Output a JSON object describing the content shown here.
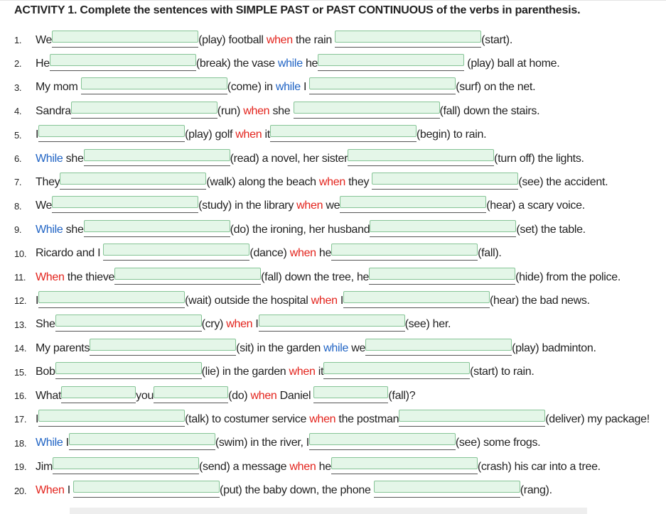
{
  "title": "ACTIVITY 1. Complete the sentences with SIMPLE PAST or PAST CONTINUOUS of the verbs in parenthesis.",
  "blank_style": {
    "fill": "#e4f6e8",
    "border": "#86c496",
    "underline": "#555555"
  },
  "items": [
    {
      "number": "1.",
      "parts": [
        "We",
        {
          "blank": true
        },
        "(play) football ",
        {
          "text": "when",
          "color": "#e3231c"
        },
        " the rain ",
        {
          "blank": true
        },
        "(start)."
      ]
    },
    {
      "number": "2.",
      "parts": [
        "He",
        {
          "blank": true
        },
        "(break) the vase ",
        {
          "text": "while",
          "color": "#1f63c4"
        },
        " he",
        {
          "blank": true
        },
        " (play) ball at home."
      ]
    },
    {
      "number": "3.",
      "parts": [
        "My mom ",
        {
          "blank": true
        },
        "(come) in ",
        {
          "text": "while",
          "color": "#1f63c4"
        },
        " I ",
        {
          "blank": true
        },
        "(surf) on the net."
      ]
    },
    {
      "number": "4.",
      "parts": [
        "Sandra",
        {
          "blank": true
        },
        "(run) ",
        {
          "text": "when",
          "color": "#e3231c"
        },
        " she ",
        {
          "blank": true
        },
        "(fall) down the stairs."
      ]
    },
    {
      "number": "5.",
      "parts": [
        "I",
        {
          "blank": true
        },
        "(play) golf ",
        {
          "text": "when",
          "color": "#e3231c"
        },
        " it",
        {
          "blank": true
        },
        "(begin) to rain."
      ]
    },
    {
      "number": "6.",
      "parts": [
        {
          "text": "While",
          "color": "#1f63c4"
        },
        " she",
        {
          "blank": true
        },
        "(read) a novel, her sister",
        {
          "blank": true
        },
        "(turn off) the lights."
      ]
    },
    {
      "number": "7.",
      "parts": [
        "They",
        {
          "blank": true
        },
        "(walk) along the beach ",
        {
          "text": "when",
          "color": "#e3231c"
        },
        " they ",
        {
          "blank": true
        },
        "(see) the accident."
      ]
    },
    {
      "number": "8.",
      "parts": [
        "We",
        {
          "blank": true
        },
        "(study) in the library ",
        {
          "text": "when",
          "color": "#e3231c"
        },
        " we",
        {
          "blank": true
        },
        "(hear) a scary voice."
      ]
    },
    {
      "number": "9.",
      "parts": [
        {
          "text": "While",
          "color": "#1f63c4"
        },
        " she",
        {
          "blank": true
        },
        "(do) the ironing, her husband",
        {
          "blank": true
        },
        "(set) the table."
      ]
    },
    {
      "number": "10.",
      "parts": [
        "Ricardo and I ",
        {
          "blank": true
        },
        "(dance) ",
        {
          "text": "when",
          "color": "#e3231c"
        },
        " he",
        {
          "blank": true
        },
        "(fall)."
      ]
    },
    {
      "number": "11.",
      "parts": [
        {
          "text": "When",
          "color": "#e3231c"
        },
        " the thieve",
        {
          "blank": true
        },
        "(fall) down the tree, he",
        {
          "blank": true
        },
        "(hide) from the police."
      ]
    },
    {
      "number": "12.",
      "parts": [
        "I",
        {
          "blank": true
        },
        "(wait) outside the hospital ",
        {
          "text": "when",
          "color": "#e3231c"
        },
        " I",
        {
          "blank": true
        },
        "(hear) the bad news."
      ]
    },
    {
      "number": "13.",
      "parts": [
        "She",
        {
          "blank": true
        },
        "(cry) ",
        {
          "text": "when",
          "color": "#e3231c"
        },
        " I",
        {
          "blank": true
        },
        "(see) her."
      ]
    },
    {
      "number": "14.",
      "parts": [
        "My parents",
        {
          "blank": true
        },
        "(sit) in the garden ",
        {
          "text": "while",
          "color": "#1f63c4"
        },
        " we",
        {
          "blank": true
        },
        "(play) badminton."
      ]
    },
    {
      "number": "15.",
      "parts": [
        "Bob",
        {
          "blank": true
        },
        "(lie) in the garden ",
        {
          "text": "when",
          "color": "#e3231c"
        },
        " it",
        {
          "blank": true
        },
        "(start) to rain."
      ]
    },
    {
      "number": "16.",
      "parts": [
        "What",
        {
          "blank": true
        },
        "you",
        {
          "blank": true
        },
        "(do) ",
        {
          "text": "when",
          "color": "#e3231c"
        },
        " Daniel ",
        {
          "blank": true
        },
        "(fall)?"
      ]
    },
    {
      "number": "17.",
      "parts": [
        "I",
        {
          "blank": true
        },
        "(talk) to costumer service ",
        {
          "text": "when",
          "color": "#e3231c"
        },
        " the postman",
        {
          "blank": true
        },
        "(deliver) my package!"
      ]
    },
    {
      "number": "18.",
      "parts": [
        {
          "text": "While",
          "color": "#1f63c4"
        },
        " I",
        {
          "blank": true
        },
        "(swim) in the river, I",
        {
          "blank": true
        },
        "(see) some frogs."
      ]
    },
    {
      "number": "19.",
      "parts": [
        "Jim",
        {
          "blank": true
        },
        "(send) a message ",
        {
          "text": "when",
          "color": "#e3231c"
        },
        " he",
        {
          "blank": true
        },
        "(crash) his car into a tree."
      ]
    },
    {
      "number": "20.",
      "parts": [
        {
          "text": "When",
          "color": "#e3231c"
        },
        " I ",
        {
          "blank": true
        },
        "(put) the baby down, the phone ",
        {
          "blank": true
        },
        "(rang)."
      ]
    }
  ]
}
